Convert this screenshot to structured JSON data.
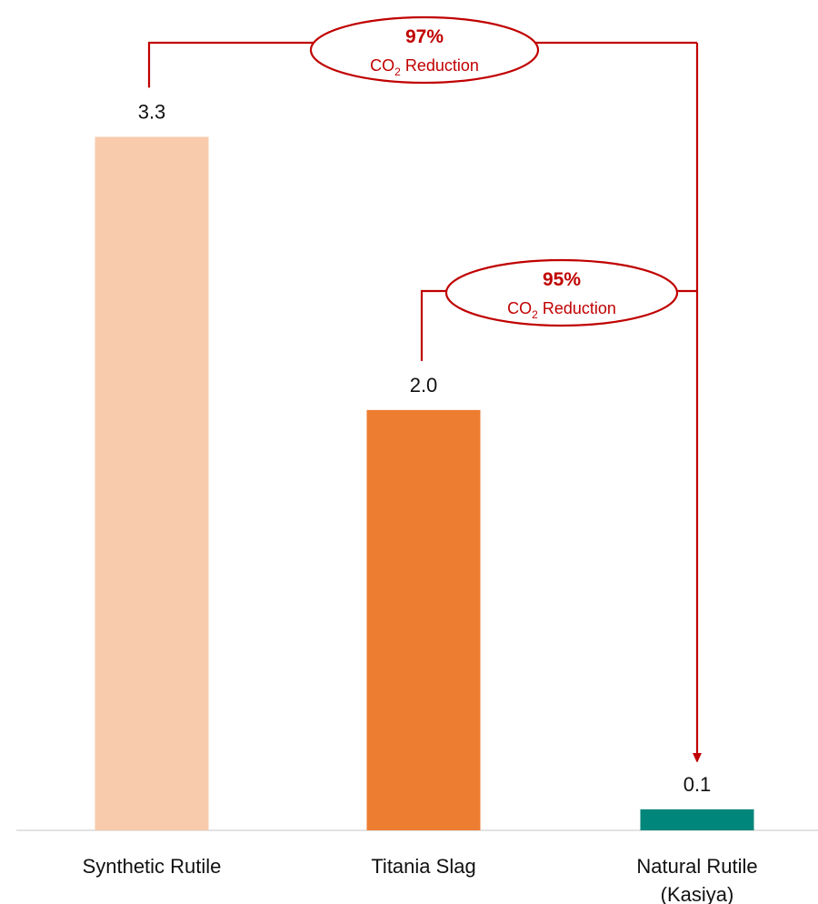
{
  "chart_data": {
    "type": "bar",
    "categories": [
      [
        "Synthetic Rutile"
      ],
      [
        "Titania Slag"
      ],
      [
        "Natural Rutile",
        "(Kasiya)"
      ]
    ],
    "values": [
      3.3,
      2.0,
      0.1
    ],
    "value_labels": [
      "3.3",
      "2.0",
      "0.1"
    ],
    "bar_colors": [
      "#F7CBAC",
      "#EC7D31",
      "#00867A"
    ],
    "title": "",
    "xlabel": "",
    "ylabel": "",
    "ylim": [
      0,
      3.7
    ],
    "grid": false,
    "legend": "none",
    "annotation_color": "#C00000",
    "annotations": [
      {
        "from_category": 0,
        "to_category": 2,
        "percent": "97%",
        "note_prefix": "CO",
        "note_subscript": "2",
        "note_suffix": " Reduction"
      },
      {
        "from_category": 1,
        "to_category": 2,
        "percent": "95%",
        "note_prefix": "CO",
        "note_subscript": "2",
        "note_suffix": " Reduction"
      }
    ]
  }
}
